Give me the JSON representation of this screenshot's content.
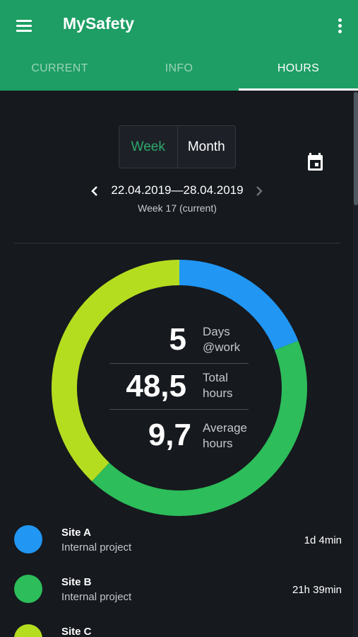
{
  "app": {
    "title": "MySafety"
  },
  "appbar": {
    "menu_icon": "hamburger-menu-icon",
    "more_icon": "more-vert-icon"
  },
  "tabs": [
    {
      "label": "CURRENT",
      "active": false
    },
    {
      "label": "INFO",
      "active": false
    },
    {
      "label": "HOURS",
      "active": true
    }
  ],
  "period_toggle": {
    "week_label": "Week",
    "month_label": "Month",
    "selected": "Week"
  },
  "calendar_icon": "calendar-icon",
  "date_nav": {
    "range": "22.04.2019—28.04.2019",
    "week": "Week 17 (current)",
    "prev_icon": "chevron-left-icon",
    "next_icon": "chevron-right-icon"
  },
  "stats": [
    {
      "value": "5",
      "label_line1": "Days",
      "label_line2": "@work"
    },
    {
      "value": "48,5",
      "label_line1": "Total",
      "label_line2": "hours"
    },
    {
      "value": "9,7",
      "label_line1": "Average",
      "label_line2": "hours"
    }
  ],
  "colors": {
    "accent": "#1e9e64",
    "site_a": "#2196f3",
    "site_b": "#2dbd5a",
    "site_c": "#b5dd20"
  },
  "chart_data": {
    "type": "pie",
    "style": "donut",
    "slices": [
      {
        "name": "Site A",
        "fraction": 0.19,
        "color": "#2196f3"
      },
      {
        "name": "Site B",
        "fraction": 0.43,
        "color": "#2dbd5a"
      },
      {
        "name": "Site C",
        "fraction": 0.38,
        "color": "#b5dd20"
      }
    ]
  },
  "sites": [
    {
      "name": "Site A",
      "project": "Internal project",
      "time": "1d 4min",
      "color": "#2196f3"
    },
    {
      "name": "Site B",
      "project": "Internal project",
      "time": "21h 39min",
      "color": "#2dbd5a"
    },
    {
      "name": "Site C",
      "project": "",
      "time": "",
      "color": "#b5dd20"
    }
  ]
}
